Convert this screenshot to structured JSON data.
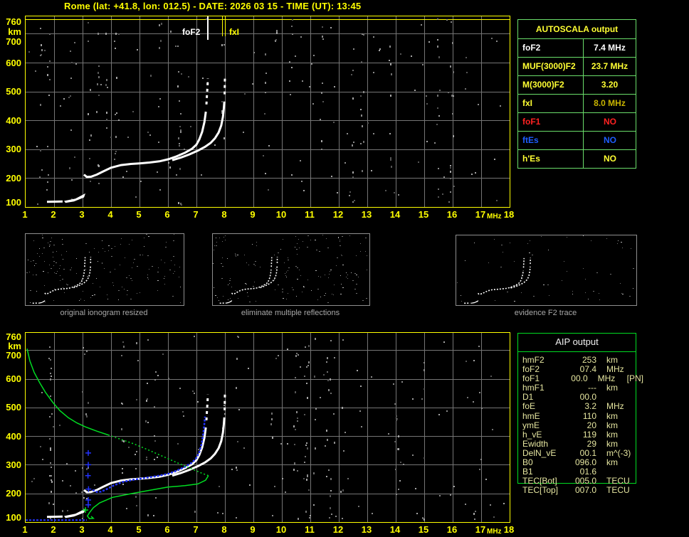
{
  "title": "Rome (lat: +41.8, lon: 012.5) - DATE: 2026 03 15 - TIME (UT): 13:45",
  "colors": {
    "accent_yellow": "#ffff00",
    "grid_gray": "#757575",
    "trace_white": "#ffffff",
    "profile_green": "#00dd22",
    "fitted_blue": "#2233ff",
    "table_green_light": "#6ade6a",
    "table_green_bright": "#00dd22",
    "aip_text": "#e6e6a0",
    "caption_gray": "#a8a8a8",
    "red": "#ff2222",
    "blue": "#1e5eff",
    "gold": "#c8b400"
  },
  "axes": {
    "x_ticks": [
      "1",
      "2",
      "3",
      "4",
      "5",
      "6",
      "7",
      "8",
      "9",
      "10",
      "11",
      "12",
      "13",
      "14",
      "15",
      "16",
      "17",
      "18"
    ],
    "y_ticks": [
      "760",
      "km",
      "700",
      "600",
      "500",
      "400",
      "300",
      "200",
      "100"
    ],
    "x_unit": "MHz",
    "y_unit": "km"
  },
  "autoscala": {
    "title": "AUTOSCALA output",
    "rows": [
      {
        "label": "foF2",
        "value": "7.4 MHz",
        "color": "#ffffff",
        "value_color": "#ffffff"
      },
      {
        "label": "MUF(3000)F2",
        "value": "23.7 MHz",
        "color": "#ffff33",
        "value_color": "#ffff33"
      },
      {
        "label": "M(3000)F2",
        "value": "3.20",
        "color": "#ffff33",
        "value_color": "#ffff33"
      },
      {
        "label": "fxI",
        "value": "8.0 MHz",
        "color": "#ffff33",
        "value_color": "#c8b400"
      },
      {
        "label": "foF1",
        "value": "NO",
        "color": "#ff2222",
        "value_color": "#ff2222"
      },
      {
        "label": "ftEs",
        "value": "NO",
        "color": "#1e5eff",
        "value_color": "#1e5eff"
      },
      {
        "label": "h'Es",
        "value": "NO",
        "color": "#ffff33",
        "value_color": "#ffff33"
      }
    ]
  },
  "thumbnails": [
    {
      "caption": "original ionogram resized"
    },
    {
      "caption": "eliminate multiple reflections"
    },
    {
      "caption": "evidence F2 trace"
    }
  ],
  "aip": {
    "title": "AIP output",
    "rows": [
      {
        "label": "hmF2",
        "value": "253",
        "unit": "km",
        "note": ""
      },
      {
        "label": "foF2",
        "value": "07.4",
        "unit": "MHz",
        "note": ""
      },
      {
        "label": "foF1",
        "value": "00.0",
        "unit": "MHz",
        "note": "[PN]"
      },
      {
        "label": "hmF1",
        "value": "---",
        "unit": "km",
        "note": ""
      },
      {
        "label": "D1",
        "value": "00.0",
        "unit": "",
        "note": ""
      },
      {
        "label": "foE",
        "value": "3.2",
        "unit": "MHz",
        "note": ""
      },
      {
        "label": "hmE",
        "value": "110",
        "unit": "km",
        "note": ""
      },
      {
        "label": "ymE",
        "value": "20",
        "unit": "km",
        "note": ""
      },
      {
        "label": "h_vE",
        "value": "119",
        "unit": "km",
        "note": ""
      },
      {
        "label": "Ewidth",
        "value": "29",
        "unit": "km",
        "note": ""
      },
      {
        "label": "DelN_vE",
        "value": "00.1",
        "unit": "m^(-3)",
        "note": ""
      },
      {
        "label": "B0",
        "value": "096.0",
        "unit": "km",
        "note": ""
      },
      {
        "label": "B1",
        "value": "01.6",
        "unit": "",
        "note": ""
      },
      {
        "label": "TEC[Bot]",
        "value": "005.0",
        "unit": "TECU",
        "note": ""
      },
      {
        "label": "TEC[Top]",
        "value": "007.0",
        "unit": "TECU",
        "note": ""
      }
    ]
  },
  "chart_data": [
    {
      "type": "scatter",
      "title": "recorded ionogram (virtual height vs frequency)",
      "xlabel": "MHz",
      "ylabel": "km",
      "xlim": [
        1,
        18
      ],
      "ylim": [
        100,
        760
      ],
      "grid": true,
      "markers": [
        {
          "label": "foF2",
          "freq_mhz": 7.4,
          "color": "#ffffff"
        },
        {
          "label": "fxI",
          "freq_mhz": 8.0,
          "color": "#ffff00"
        }
      ],
      "series": [
        {
          "name": "E-trace",
          "color": "#ffffff",
          "style": "line",
          "width": 3,
          "points": [
            [
              1.75,
              118
            ],
            [
              2.3,
              119
            ]
          ]
        },
        {
          "name": "E-trace-wedge",
          "color": "#ffffff",
          "style": "polygon",
          "points": [
            [
              2.35,
              121
            ],
            [
              2.75,
              129
            ],
            [
              3.1,
              147
            ],
            [
              3.05,
              133
            ],
            [
              2.7,
              119
            ],
            [
              2.4,
              114
            ]
          ]
        },
        {
          "name": "F2-ordinary-trace",
          "color": "#ffffff",
          "style": "line",
          "width": 3,
          "points": [
            [
              3.05,
              212
            ],
            [
              3.15,
              204
            ],
            [
              3.3,
              205
            ],
            [
              3.5,
              212
            ],
            [
              3.7,
              222
            ],
            [
              4.0,
              236
            ],
            [
              4.35,
              245
            ],
            [
              4.7,
              249
            ],
            [
              5.0,
              251
            ],
            [
              5.35,
              254
            ],
            [
              5.7,
              258
            ],
            [
              6.0,
              265
            ],
            [
              6.3,
              275
            ],
            [
              6.6,
              288
            ],
            [
              6.85,
              302
            ],
            [
              7.0,
              316
            ],
            [
              7.1,
              334
            ],
            [
              7.2,
              360
            ],
            [
              7.28,
              394
            ],
            [
              7.33,
              430
            ]
          ]
        },
        {
          "name": "F2-ordinary-asymptote",
          "color": "#ffffff",
          "style": "dash",
          "width": 3,
          "points": [
            [
              7.35,
              455
            ],
            [
              7.37,
              490
            ],
            [
              7.39,
              520
            ],
            [
              7.4,
              545
            ]
          ]
        },
        {
          "name": "F2-extraordinary-trace",
          "color": "#ffffff",
          "style": "line",
          "width": 3,
          "points": [
            [
              6.15,
              262
            ],
            [
              6.45,
              271
            ],
            [
              6.75,
              282
            ],
            [
              7.05,
              295
            ],
            [
              7.3,
              308
            ],
            [
              7.5,
              322
            ],
            [
              7.65,
              338
            ],
            [
              7.78,
              358
            ],
            [
              7.87,
              382
            ],
            [
              7.93,
              412
            ],
            [
              7.96,
              440
            ],
            [
              7.98,
              465
            ]
          ]
        },
        {
          "name": "F2-extraordinary-asymptote",
          "color": "#ffffff",
          "style": "dash",
          "width": 3,
          "points": [
            [
              7.99,
              490
            ],
            [
              7.995,
              520
            ],
            [
              8.0,
              548
            ]
          ]
        }
      ]
    },
    {
      "type": "scatter",
      "title": "ionogram with restored trace and electron density profile",
      "xlabel": "MHz",
      "ylabel": "km",
      "xlim": [
        1,
        18
      ],
      "ylim": [
        100,
        760
      ],
      "grid": true,
      "series": [
        {
          "name": "fitted-E-baseline",
          "color": "#2233ff",
          "style": "dash2",
          "width": 2,
          "points": [
            [
              1.0,
              107
            ],
            [
              3.15,
              107
            ]
          ]
        },
        {
          "name": "foE-retardation-marks",
          "color": "#2233ff",
          "style": "cross",
          "points": [
            [
              3.2,
              160
            ],
            [
              3.21,
              215
            ],
            [
              3.19,
              262
            ],
            [
              3.2,
              300
            ],
            [
              3.2,
              341
            ]
          ]
        },
        {
          "name": "fitted-F-trace",
          "color": "#2233ff",
          "style": "dash2",
          "width": 2.5,
          "points": [
            [
              3.35,
              212
            ],
            [
              3.5,
              205
            ],
            [
              3.65,
              206
            ],
            [
              3.85,
              215
            ],
            [
              4.1,
              228
            ],
            [
              4.4,
              240
            ],
            [
              4.8,
              248
            ],
            [
              5.2,
              254
            ],
            [
              5.6,
              260
            ],
            [
              6.0,
              268
            ],
            [
              6.3,
              279
            ],
            [
              6.6,
              293
            ],
            [
              6.85,
              308
            ],
            [
              7.0,
              324
            ],
            [
              7.1,
              344
            ],
            [
              7.18,
              372
            ],
            [
              7.24,
              408
            ],
            [
              7.28,
              445
            ],
            [
              7.3,
              468
            ]
          ]
        },
        {
          "name": "profile-topside",
          "color": "#00dd22",
          "style": "line",
          "width": 1.5,
          "points": [
            [
              1.05,
              705
            ],
            [
              1.15,
              662
            ],
            [
              1.3,
              622
            ],
            [
              1.5,
              585
            ],
            [
              1.7,
              552
            ],
            [
              1.95,
              518
            ],
            [
              2.2,
              489
            ],
            [
              2.5,
              464
            ],
            [
              2.8,
              446
            ],
            [
              3.1,
              432
            ],
            [
              3.5,
              417
            ],
            [
              3.9,
              404
            ]
          ]
        },
        {
          "name": "profile-topside-dotted",
          "color": "#00dd22",
          "style": "dot",
          "width": 1.5,
          "points": [
            [
              3.9,
              404
            ],
            [
              4.3,
              390
            ],
            [
              4.8,
              373
            ],
            [
              5.3,
              352
            ],
            [
              5.8,
              330
            ],
            [
              6.3,
              308
            ],
            [
              6.8,
              287
            ],
            [
              7.2,
              270
            ],
            [
              7.42,
              262
            ]
          ]
        },
        {
          "name": "profile-bottomside",
          "color": "#00dd22",
          "style": "line",
          "width": 1.5,
          "points": [
            [
              7.42,
              262
            ],
            [
              7.32,
              246
            ],
            [
              7.05,
              233
            ],
            [
              6.6,
              227
            ],
            [
              6.0,
              222
            ],
            [
              5.3,
              210
            ],
            [
              4.6,
              197
            ],
            [
              4.05,
              186
            ],
            [
              3.6,
              167
            ],
            [
              3.38,
              150
            ],
            [
              3.25,
              134
            ],
            [
              3.17,
              121
            ],
            [
              3.24,
              112
            ],
            [
              3.38,
              113
            ],
            [
              3.3,
              120
            ]
          ]
        },
        {
          "name": "E-peak-cross-green",
          "color": "#00dd22",
          "style": "cross",
          "points": [
            [
              3.1,
              142
            ]
          ]
        },
        {
          "name": "E-peak-cross-blue",
          "color": "#2233ff",
          "style": "cross",
          "points": [
            [
              3.2,
              177
            ]
          ]
        }
      ]
    }
  ]
}
